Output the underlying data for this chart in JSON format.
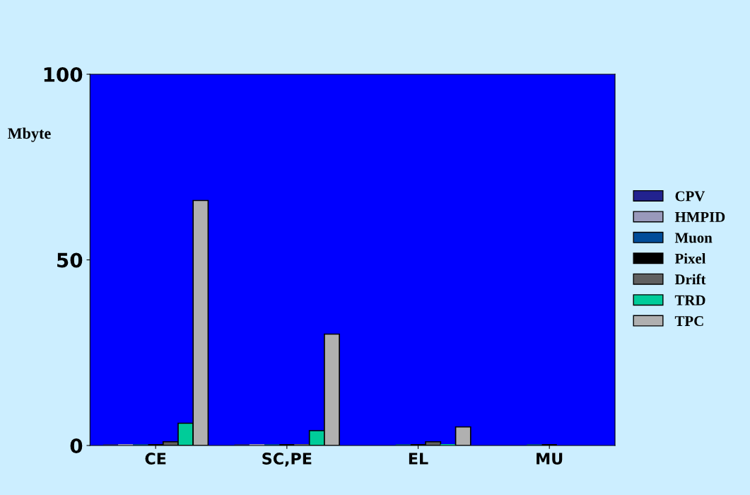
{
  "chart_data": {
    "type": "bar",
    "ylabel": "Mbyte",
    "categories": [
      "CE",
      "SC,PE",
      "EL",
      "MU"
    ],
    "ylim": [
      0,
      100
    ],
    "yticks": [
      0,
      50,
      100
    ],
    "grid": false,
    "legend": "right",
    "series": [
      {
        "name": "CPV",
        "color": "#22228f",
        "values": [
          0,
          0,
          null,
          null
        ]
      },
      {
        "name": "HMPID",
        "color": "#9999bb",
        "values": [
          0,
          0,
          null,
          null
        ]
      },
      {
        "name": "Muon",
        "color": "#004c99",
        "values": [
          0,
          0,
          0,
          0
        ]
      },
      {
        "name": "Pixel",
        "color": "#000000",
        "values": [
          0,
          0,
          0,
          0
        ]
      },
      {
        "name": "Drift",
        "color": "#606060",
        "values": [
          1,
          0,
          1,
          null
        ]
      },
      {
        "name": "TRD",
        "color": "#00cc99",
        "values": [
          6,
          4,
          0,
          null
        ]
      },
      {
        "name": "TPC",
        "color": "#b0b0b0",
        "values": [
          66,
          30,
          5,
          null
        ]
      }
    ]
  }
}
